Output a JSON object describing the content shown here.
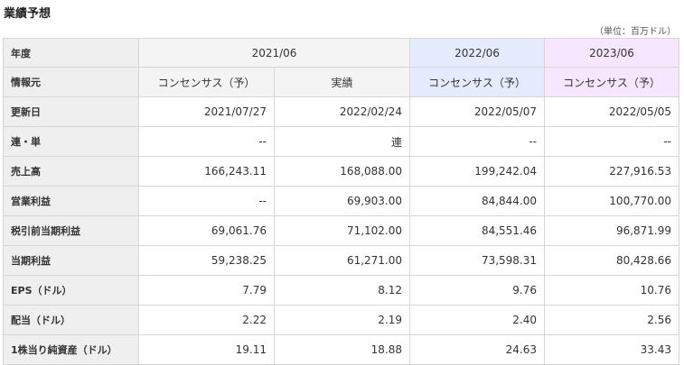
{
  "title": "業績予想",
  "unit_note": "（単位：百万ドル）",
  "columns": {
    "year_label": "年度",
    "source_label": "情報元",
    "years": [
      "2021/06",
      "2022/06",
      "2023/06"
    ],
    "sources": [
      "コンセンサス（予）",
      "実績",
      "コンセンサス（予）",
      "コンセンサス（予）"
    ]
  },
  "rows": [
    {
      "label": "更新日",
      "values": [
        "2021/07/27",
        "2022/02/24",
        "2022/05/07",
        "2022/05/05"
      ]
    },
    {
      "label": "連・単",
      "values": [
        "--",
        "連",
        "--",
        "--"
      ]
    },
    {
      "label": "売上高",
      "values": [
        "166,243.11",
        "168,088.00",
        "199,242.04",
        "227,916.53"
      ]
    },
    {
      "label": "営業利益",
      "values": [
        "--",
        "69,903.00",
        "84,844.00",
        "100,770.00"
      ]
    },
    {
      "label": "税引前当期利益",
      "values": [
        "69,061.76",
        "71,102.00",
        "84,551.46",
        "96,871.99"
      ]
    },
    {
      "label": "当期利益",
      "values": [
        "59,238.25",
        "61,271.00",
        "73,598.31",
        "80,428.66"
      ]
    },
    {
      "label": "EPS（ドル）",
      "values": [
        "7.79",
        "8.12",
        "9.76",
        "10.76"
      ]
    },
    {
      "label": "配当（ドル）",
      "values": [
        "2.22",
        "2.19",
        "2.40",
        "2.56"
      ]
    },
    {
      "label": "1株当り純資産（ドル）",
      "values": [
        "19.11",
        "18.88",
        "24.63",
        "33.43"
      ]
    }
  ],
  "colors": {
    "header_gray": "#efefef",
    "col_2022": "#e7ebff",
    "col_2023": "#f7e6ff",
    "border": "#d6d6d6"
  }
}
